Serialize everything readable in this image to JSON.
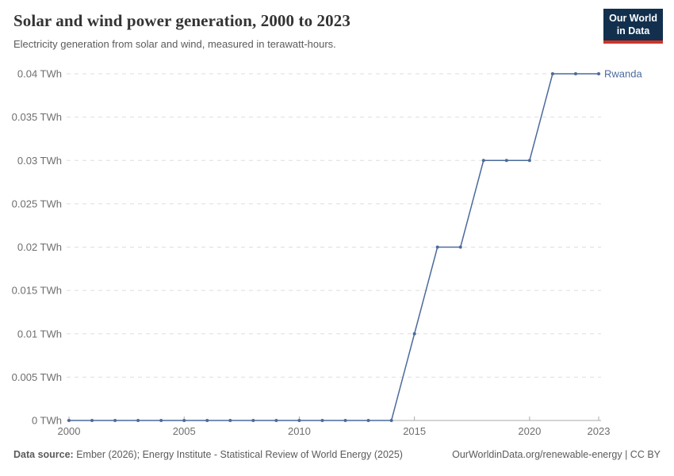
{
  "header": {
    "title": "Solar and wind power generation, 2000 to 2023",
    "subtitle": "Electricity generation from solar and wind, measured in terawatt-hours.",
    "logo": {
      "line1": "Our World",
      "line2": "in Data",
      "bg_color": "#12304e",
      "accent_color": "#cf3428"
    }
  },
  "chart_data": {
    "type": "line",
    "title": "Solar and wind power generation, 2000 to 2023",
    "xlabel": "",
    "ylabel": "",
    "xlim": [
      2000,
      2023
    ],
    "ylim": [
      0,
      0.04
    ],
    "grid": "horizontal-dashed",
    "legend_position": "end-of-line",
    "x": [
      2000,
      2001,
      2002,
      2003,
      2004,
      2005,
      2006,
      2007,
      2008,
      2009,
      2010,
      2011,
      2012,
      2013,
      2014,
      2015,
      2016,
      2017,
      2018,
      2019,
      2020,
      2021,
      2022,
      2023
    ],
    "x_ticks": [
      2000,
      2005,
      2010,
      2015,
      2020,
      2023
    ],
    "y_ticks": [
      {
        "value": 0,
        "label": "0 TWh"
      },
      {
        "value": 0.005,
        "label": "0.005 TWh"
      },
      {
        "value": 0.01,
        "label": "0.01 TWh"
      },
      {
        "value": 0.015,
        "label": "0.015 TWh"
      },
      {
        "value": 0.02,
        "label": "0.02 TWh"
      },
      {
        "value": 0.025,
        "label": "0.025 TWh"
      },
      {
        "value": 0.03,
        "label": "0.03 TWh"
      },
      {
        "value": 0.035,
        "label": "0.035 TWh"
      },
      {
        "value": 0.04,
        "label": "0.04 TWh"
      }
    ],
    "series": [
      {
        "name": "Rwanda",
        "color": "#4C6A9C",
        "values": [
          0,
          0,
          0,
          0,
          0,
          0,
          0,
          0,
          0,
          0,
          0,
          0,
          0,
          0,
          0,
          0.01,
          0.02,
          0.02,
          0.03,
          0.03,
          0.03,
          0.04,
          0.04,
          0.04
        ]
      }
    ],
    "colors": {
      "grid": "#dedede",
      "axis": "#a8a8a8",
      "tick_text": "#6e6e6e"
    }
  },
  "footer": {
    "source_label": "Data source:",
    "source_text": "Ember (2026); Energy Institute - Statistical Review of World Energy (2025)",
    "link": "OurWorldinData.org/renewable-energy",
    "separator": " | ",
    "license": "CC BY"
  }
}
